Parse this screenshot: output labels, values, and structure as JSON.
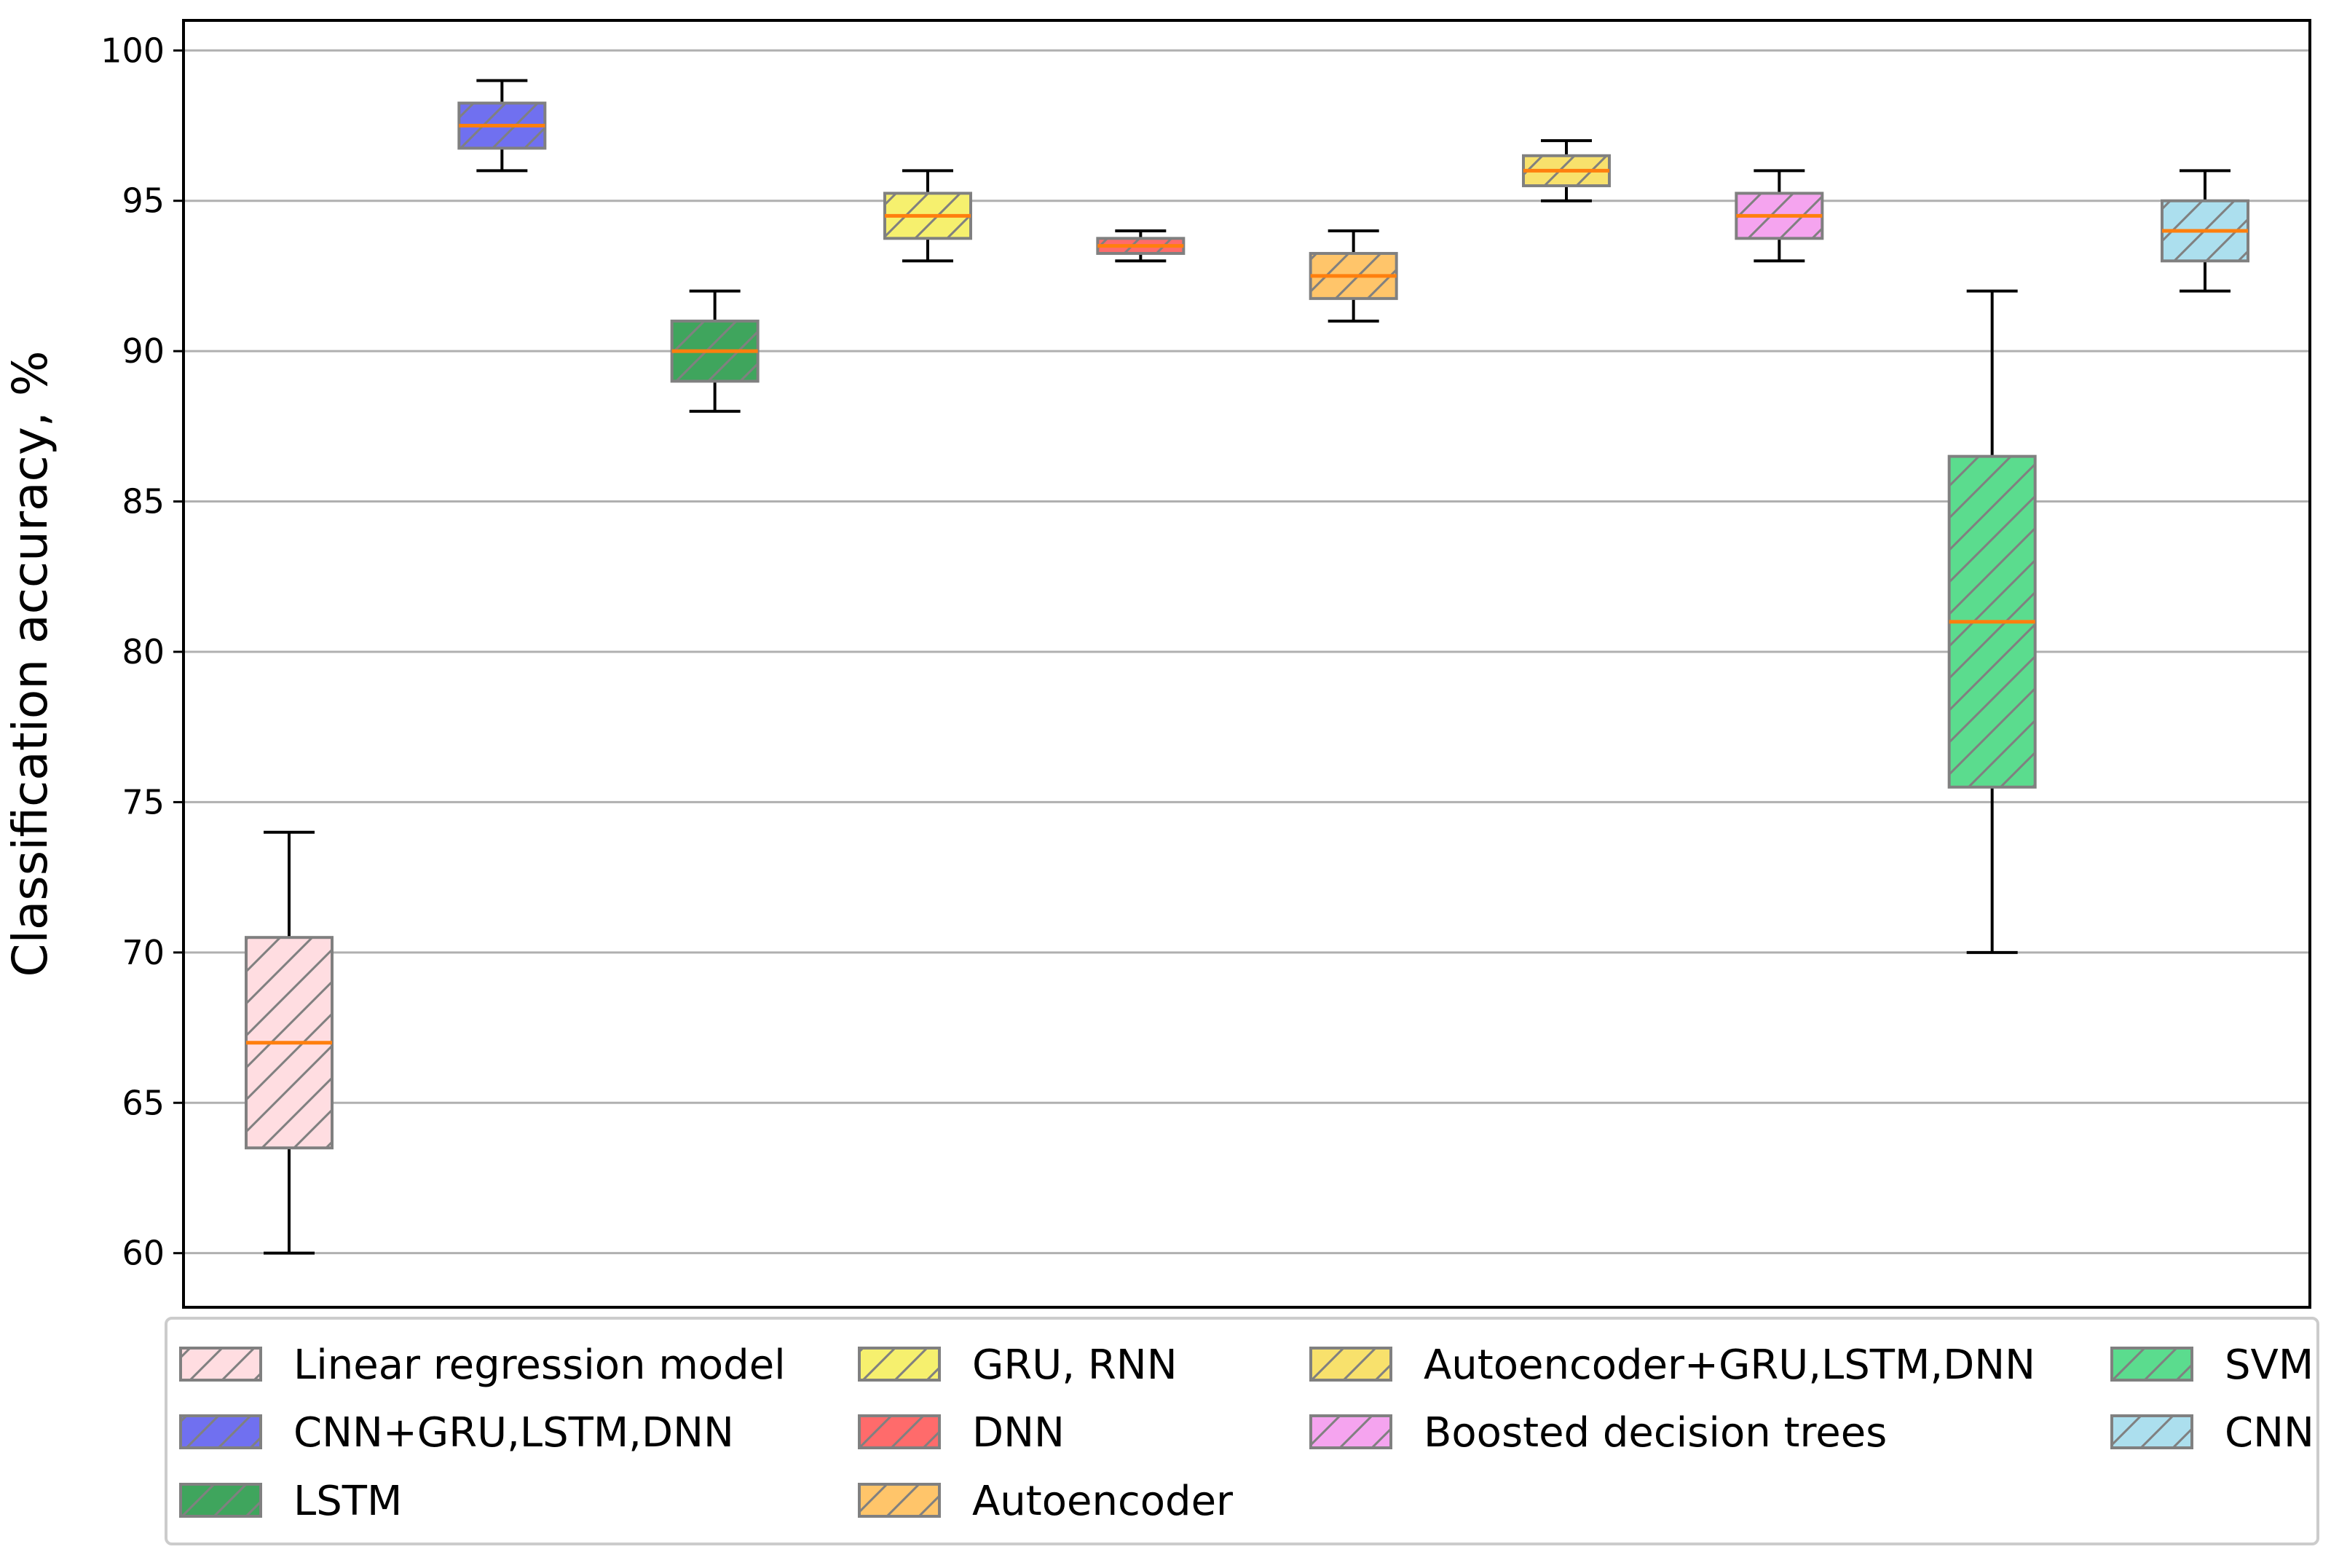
{
  "chart_data": {
    "type": "box",
    "title": "",
    "xlabel": "",
    "ylabel": "Classification accuracy, %",
    "ylim": [
      58.2,
      101.0
    ],
    "yticks": [
      60,
      65,
      70,
      75,
      80,
      85,
      90,
      95,
      100
    ],
    "grid": "horizontal",
    "legend_position": "bottom",
    "series": [
      {
        "name": "Linear regression model",
        "color": "#ffdde1",
        "whisker_low": 60,
        "q1": 63.5,
        "median": 67,
        "q3": 70.5,
        "whisker_high": 74
      },
      {
        "name": "CNN+GRU,LSTM,DNN",
        "color": "#7070f0",
        "whisker_low": 96,
        "q1": 96.75,
        "median": 97.5,
        "q3": 98.25,
        "whisker_high": 99
      },
      {
        "name": "LSTM",
        "color": "#3fa55d",
        "whisker_low": 88,
        "q1": 89,
        "median": 90,
        "q3": 91,
        "whisker_high": 92
      },
      {
        "name": "GRU, RNN",
        "color": "#f6f06e",
        "whisker_low": 93,
        "q1": 93.75,
        "median": 94.5,
        "q3": 95.25,
        "whisker_high": 96
      },
      {
        "name": "DNN",
        "color": "#ff6b6b",
        "whisker_low": 93,
        "q1": 93.25,
        "median": 93.5,
        "q3": 93.75,
        "whisker_high": 94
      },
      {
        "name": "Autoencoder",
        "color": "#ffc56a",
        "whisker_low": 91,
        "q1": 91.75,
        "median": 92.5,
        "q3": 93.25,
        "whisker_high": 94
      },
      {
        "name": "Autoencoder+GRU,LSTM,DNN",
        "color": "#f8e16c",
        "whisker_low": 95,
        "q1": 95.5,
        "median": 96,
        "q3": 96.5,
        "whisker_high": 97
      },
      {
        "name": "Boosted decision trees",
        "color": "#f5a4ef",
        "whisker_low": 93,
        "q1": 93.75,
        "median": 94.5,
        "q3": 95.25,
        "whisker_high": 96
      },
      {
        "name": "SVM",
        "color": "#5bdc8e",
        "whisker_low": 70,
        "q1": 75.5,
        "median": 81,
        "q3": 86.5,
        "whisker_high": 92
      },
      {
        "name": "CNN",
        "color": "#acdfee",
        "whisker_low": 92,
        "q1": 93,
        "median": 94,
        "q3": 95,
        "whisker_high": 96
      }
    ],
    "style": {
      "median_color": "#ff7f0e",
      "box_edge_color": "#808080",
      "hatch_color": "#808080",
      "grid_color": "#b0b0b0"
    }
  }
}
